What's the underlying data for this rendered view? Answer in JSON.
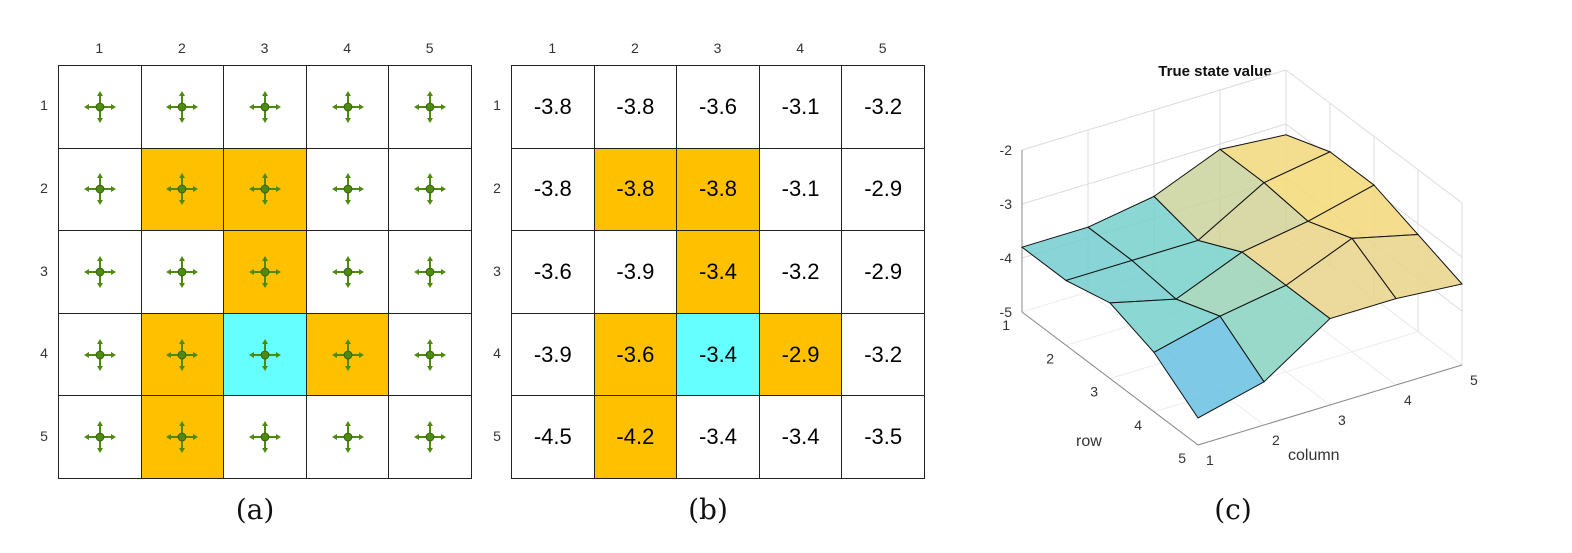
{
  "colors": {
    "forbidden": "#FFC000",
    "target": "#66FFFF",
    "normal": "#FFFFFF",
    "arrow": "#4F8A10"
  },
  "panel_a": {
    "caption": "(a)",
    "col_labels": [
      "1",
      "2",
      "3",
      "4",
      "5"
    ],
    "row_labels": [
      "1",
      "2",
      "3",
      "4",
      "5"
    ],
    "cell_types": [
      [
        "normal",
        "normal",
        "normal",
        "normal",
        "normal"
      ],
      [
        "normal",
        "forbidden",
        "forbidden",
        "normal",
        "normal"
      ],
      [
        "normal",
        "normal",
        "forbidden",
        "normal",
        "normal"
      ],
      [
        "normal",
        "forbidden",
        "target",
        "forbidden",
        "normal"
      ],
      [
        "normal",
        "forbidden",
        "normal",
        "normal",
        "normal"
      ]
    ],
    "cell_icon": "four-way-arrow-icon"
  },
  "panel_b": {
    "caption": "(b)",
    "col_labels": [
      "1",
      "2",
      "3",
      "4",
      "5"
    ],
    "row_labels": [
      "1",
      "2",
      "3",
      "4",
      "5"
    ],
    "values": [
      [
        "-3.8",
        "-3.8",
        "-3.6",
        "-3.1",
        "-3.2"
      ],
      [
        "-3.8",
        "-3.8",
        "-3.8",
        "-3.1",
        "-2.9"
      ],
      [
        "-3.6",
        "-3.9",
        "-3.4",
        "-3.2",
        "-2.9"
      ],
      [
        "-3.9",
        "-3.6",
        "-3.4",
        "-2.9",
        "-3.2"
      ],
      [
        "-4.5",
        "-4.2",
        "-3.4",
        "-3.4",
        "-3.5"
      ]
    ]
  },
  "panel_c": {
    "caption": "(c)",
    "title": "True state value",
    "z_ticks": [
      "-2",
      "-3",
      "-4",
      "-5"
    ],
    "row_ticks": [
      "1",
      "2",
      "3",
      "4",
      "5"
    ],
    "col_ticks": [
      "1",
      "2",
      "3",
      "4",
      "5"
    ],
    "row_label": "row",
    "col_label": "column",
    "z_range": [
      -5,
      -2
    ]
  }
}
